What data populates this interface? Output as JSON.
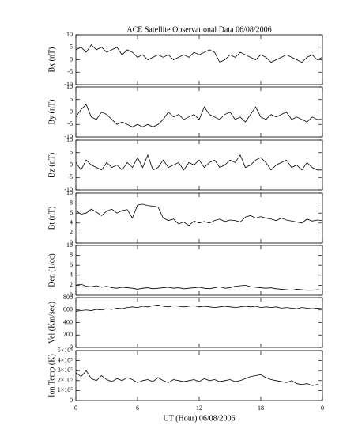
{
  "chart_data": [
    {
      "type": "line",
      "title": "ACE Satellite Observational Data   06/08/2006",
      "y_label": "Bx (nT)",
      "color": "#000000",
      "x": [
        0,
        0.5,
        1,
        1.5,
        2,
        2.5,
        3,
        3.5,
        4,
        4.5,
        5,
        5.5,
        6,
        6.5,
        7,
        7.5,
        8,
        8.5,
        9,
        9.5,
        10,
        10.5,
        11,
        11.5,
        12,
        12.5,
        13,
        13.5,
        14,
        14.5,
        15,
        15.5,
        16,
        16.5,
        17,
        17.5,
        18,
        18.5,
        19,
        19.5,
        20,
        20.5,
        21,
        21.5,
        22,
        22.5,
        23,
        23.5,
        24
      ],
      "values": [
        4,
        5,
        3,
        6,
        4,
        5,
        3,
        4,
        5,
        2,
        4,
        3,
        1,
        2,
        0,
        1,
        2,
        1,
        2,
        0,
        1,
        2,
        1,
        3,
        2,
        3,
        4,
        3,
        -1,
        0,
        2,
        1,
        3,
        2,
        1,
        0,
        2,
        1,
        -1,
        0,
        1,
        2,
        1,
        0,
        -1,
        1,
        2,
        0,
        1
      ],
      "xlim": [
        0,
        24
      ],
      "ylim": [
        -10,
        10
      ],
      "yticks": [
        -10,
        -5,
        0,
        5,
        10
      ]
    },
    {
      "type": "line",
      "y_label": "By (nT)",
      "color": "#000000",
      "x": [
        0,
        0.5,
        1,
        1.5,
        2,
        2.5,
        3,
        3.5,
        4,
        4.5,
        5,
        5.5,
        6,
        6.5,
        7,
        7.5,
        8,
        8.5,
        9,
        9.5,
        10,
        10.5,
        11,
        11.5,
        12,
        12.5,
        13,
        13.5,
        14,
        14.5,
        15,
        15.5,
        16,
        16.5,
        17,
        17.5,
        18,
        18.5,
        19,
        19.5,
        20,
        20.5,
        21,
        21.5,
        22,
        22.5,
        23,
        23.5,
        24
      ],
      "values": [
        -2,
        1,
        3,
        -2,
        -3,
        0,
        -1,
        -3,
        -5,
        -4,
        -5,
        -6,
        -5,
        -6,
        -5,
        -6,
        -5,
        -3,
        0,
        -2,
        -1,
        -3,
        -2,
        -1,
        -3,
        2,
        -1,
        -2,
        -3,
        -1,
        0,
        -3,
        -2,
        -4,
        -1,
        2,
        -2,
        -3,
        -1,
        -2,
        -1,
        0,
        -3,
        -2,
        -3,
        -4,
        -2,
        -3,
        -3
      ],
      "xlim": [
        0,
        24
      ],
      "ylim": [
        -10,
        10
      ],
      "yticks": [
        -10,
        -5,
        0,
        5,
        10
      ]
    },
    {
      "type": "line",
      "y_label": "Bz (nT)",
      "color": "#000000",
      "x": [
        0,
        0.5,
        1,
        1.5,
        2,
        2.5,
        3,
        3.5,
        4,
        4.5,
        5,
        5.5,
        6,
        6.5,
        7,
        7.5,
        8,
        8.5,
        9,
        9.5,
        10,
        10.5,
        11,
        11.5,
        12,
        12.5,
        13,
        13.5,
        14,
        14.5,
        15,
        15.5,
        16,
        16.5,
        17,
        17.5,
        18,
        18.5,
        19,
        19.5,
        20,
        20.5,
        21,
        21.5,
        22,
        22.5,
        23,
        23.5,
        24
      ],
      "values": [
        1,
        -2,
        2,
        0,
        -1,
        -2,
        1,
        -1,
        0,
        -2,
        1,
        -1,
        3,
        -1,
        4,
        -2,
        -1,
        2,
        -1,
        0,
        1,
        -2,
        1,
        0,
        2,
        -1,
        1,
        2,
        -1,
        0,
        2,
        1,
        4,
        -1,
        0,
        2,
        3,
        1,
        -2,
        0,
        1,
        2,
        -1,
        0,
        -2,
        1,
        -1,
        -2,
        -2
      ],
      "xlim": [
        0,
        24
      ],
      "ylim": [
        -10,
        10
      ],
      "yticks": [
        -10,
        -5,
        0,
        5,
        10
      ]
    },
    {
      "type": "line",
      "y_label": "Bt (nT)",
      "color": "#000000",
      "x": [
        0,
        0.5,
        1,
        1.5,
        2,
        2.5,
        3,
        3.5,
        4,
        4.5,
        5,
        5.5,
        6,
        6.5,
        7,
        7.5,
        8,
        8.5,
        9,
        9.5,
        10,
        10.5,
        11,
        11.5,
        12,
        12.5,
        13,
        13.5,
        14,
        14.5,
        15,
        15.5,
        16,
        16.5,
        17,
        17.5,
        18,
        18.5,
        19,
        19.5,
        20,
        20.5,
        21,
        21.5,
        22,
        22.5,
        23,
        23.5,
        24
      ],
      "values": [
        6.5,
        5.8,
        6,
        6.8,
        6.2,
        5.5,
        6.4,
        6.8,
        6,
        6.5,
        6.7,
        5,
        7.6,
        7.8,
        7.5,
        7.4,
        7.2,
        5,
        4.5,
        4.8,
        3.8,
        4.2,
        3.5,
        4.4,
        4,
        4.3,
        4,
        4.5,
        4.8,
        4.3,
        4.6,
        4.5,
        4.2,
        5.2,
        5.5,
        5,
        5.3,
        5,
        4.8,
        4.5,
        5,
        4.6,
        4.4,
        4.2,
        4,
        4.8,
        4.4,
        4.6,
        4.5
      ],
      "xlim": [
        0,
        24
      ],
      "ylim": [
        0,
        10
      ],
      "yticks": [
        0,
        2,
        4,
        6,
        8,
        10
      ]
    },
    {
      "type": "line",
      "y_label": "Den (1/cc)",
      "color": "#000000",
      "x": [
        0,
        0.5,
        1,
        1.5,
        2,
        2.5,
        3,
        3.5,
        4,
        4.5,
        5,
        5.5,
        6,
        6.5,
        7,
        7.5,
        8,
        8.5,
        9,
        9.5,
        10,
        10.5,
        11,
        11.5,
        12,
        12.5,
        13,
        13.5,
        14,
        14.5,
        15,
        15.5,
        16,
        16.5,
        17,
        17.5,
        18,
        18.5,
        19,
        19.5,
        20,
        20.5,
        21,
        21.5,
        22,
        22.5,
        23,
        23.5,
        24
      ],
      "values": [
        2,
        2.2,
        1.8,
        1.7,
        1.9,
        1.6,
        1.8,
        1.5,
        1.4,
        1.6,
        1.5,
        1.4,
        1.2,
        1.4,
        1.5,
        1.3,
        1.4,
        1.5,
        1.6,
        1.4,
        1.5,
        1.3,
        1.4,
        1.5,
        1.6,
        1.4,
        1.3,
        1.5,
        1.7,
        1.4,
        1.5,
        1.8,
        1.9,
        2,
        1.7,
        1.6,
        1.5,
        1.4,
        1.5,
        1.3,
        1.2,
        1.1,
        1,
        1.2,
        1.1,
        1,
        1,
        1.1,
        1
      ],
      "xlim": [
        0,
        24
      ],
      "ylim": [
        0,
        10
      ],
      "yticks": [
        0,
        2,
        4,
        6,
        8,
        10
      ]
    },
    {
      "type": "line",
      "y_label": "Vel (Km/sec)",
      "color": "#000000",
      "x": [
        0,
        0.5,
        1,
        1.5,
        2,
        2.5,
        3,
        3.5,
        4,
        4.5,
        5,
        5.5,
        6,
        6.5,
        7,
        7.5,
        8,
        8.5,
        9,
        9.5,
        10,
        10.5,
        11,
        11.5,
        12,
        12.5,
        13,
        13.5,
        14,
        14.5,
        15,
        15.5,
        16,
        16.5,
        17,
        17.5,
        18,
        18.5,
        19,
        19.5,
        20,
        20.5,
        21,
        21.5,
        22,
        22.5,
        23,
        23.5,
        24
      ],
      "values": [
        580,
        590,
        600,
        590,
        610,
        600,
        620,
        610,
        630,
        620,
        640,
        650,
        640,
        660,
        650,
        670,
        680,
        660,
        650,
        670,
        660,
        650,
        660,
        670,
        650,
        660,
        650,
        640,
        650,
        660,
        650,
        640,
        650,
        660,
        650,
        660,
        640,
        650,
        640,
        650,
        630,
        640,
        630,
        620,
        640,
        630,
        620,
        630,
        620
      ],
      "xlim": [
        0,
        24
      ],
      "ylim": [
        0,
        800
      ],
      "yticks": [
        0,
        200,
        400,
        600,
        800
      ]
    },
    {
      "type": "line",
      "y_label": "Ion Temp (K)",
      "x_label": "UT (Hour)   06/08/2006",
      "color": "#000000",
      "x": [
        0,
        0.5,
        1,
        1.5,
        2,
        2.5,
        3,
        3.5,
        4,
        4.5,
        5,
        5.5,
        6,
        6.5,
        7,
        7.5,
        8,
        8.5,
        9,
        9.5,
        10,
        10.5,
        11,
        11.5,
        12,
        12.5,
        13,
        13.5,
        14,
        14.5,
        15,
        15.5,
        16,
        16.5,
        17,
        17.5,
        18,
        18.5,
        19,
        19.5,
        20,
        20.5,
        21,
        21.5,
        22,
        22.5,
        23,
        23.5,
        24
      ],
      "values": [
        280000,
        240000,
        300000,
        220000,
        200000,
        250000,
        210000,
        190000,
        220000,
        200000,
        230000,
        210000,
        180000,
        200000,
        210000,
        190000,
        230000,
        200000,
        180000,
        210000,
        200000,
        190000,
        200000,
        210000,
        190000,
        220000,
        200000,
        210000,
        190000,
        200000,
        210000,
        190000,
        200000,
        220000,
        240000,
        250000,
        260000,
        230000,
        210000,
        200000,
        190000,
        180000,
        200000,
        170000,
        160000,
        170000,
        150000,
        160000,
        150000
      ],
      "xlim": [
        0,
        24
      ],
      "ylim": [
        0,
        500000
      ],
      "yticks": [
        0,
        {
          "value": 100000,
          "label": "1×10⁵"
        },
        {
          "value": 200000,
          "label": "2×10⁵"
        },
        {
          "value": 300000,
          "label": "3×10⁵"
        },
        {
          "value": 400000,
          "label": "4×10⁵"
        },
        {
          "value": 500000,
          "label": "5×10⁵"
        }
      ],
      "xticks": [
        0,
        6,
        12,
        18,
        {
          "value": 24,
          "label": "0"
        }
      ]
    }
  ]
}
